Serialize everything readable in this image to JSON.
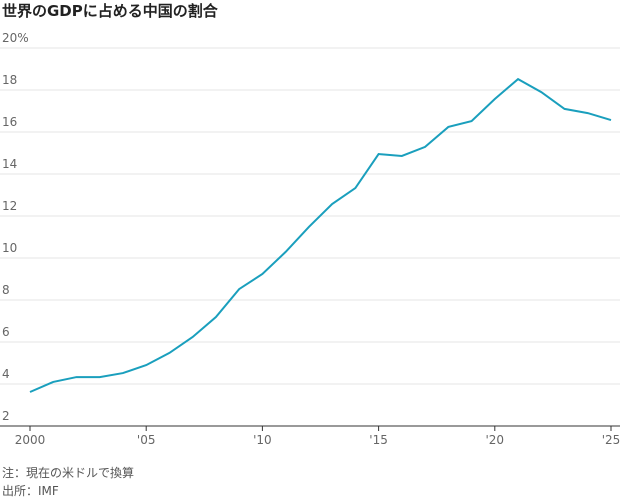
{
  "chart_data": {
    "type": "line",
    "title": "世界のGDPに占める中国の割合",
    "notes": [
      "注：現在の米ドルで換算",
      "出所：IMF"
    ],
    "x": [
      2000,
      2001,
      2002,
      2003,
      2004,
      2005,
      2006,
      2007,
      2008,
      2009,
      2010,
      2011,
      2012,
      2013,
      2014,
      2015,
      2016,
      2017,
      2018,
      2019,
      2020,
      2021,
      2022,
      2023,
      2024,
      2025
    ],
    "series": [
      {
        "name": "中国",
        "color": "#1a9fbd",
        "values": [
          3.62,
          4.1,
          4.33,
          4.33,
          4.52,
          4.9,
          5.48,
          6.24,
          7.19,
          8.52,
          9.24,
          10.29,
          11.48,
          12.57,
          13.33,
          14.95,
          14.86,
          15.29,
          16.24,
          16.52,
          17.57,
          18.52,
          17.9,
          17.1,
          16.9,
          16.57
        ]
      }
    ],
    "xlim": [
      2000,
      2025
    ],
    "xticks": [
      2000,
      {
        "value": 2005,
        "label": "'05"
      },
      {
        "value": 2010,
        "label": "'10"
      },
      {
        "value": 2015,
        "label": "'15"
      },
      {
        "value": 2020,
        "label": "'20"
      },
      {
        "value": 2025,
        "label": "'25"
      }
    ],
    "ylim": [
      2,
      20
    ],
    "yticks": [
      2,
      4,
      6,
      8,
      10,
      12,
      14,
      16,
      18,
      {
        "value": 20,
        "label": "20%"
      }
    ],
    "grid": true
  }
}
